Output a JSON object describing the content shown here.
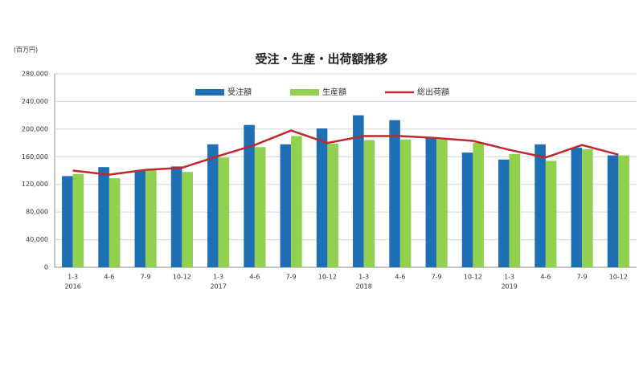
{
  "chart_data": {
    "type": "bar_line",
    "title": "受注・生産・出荷額推移",
    "unit_label": "(百万円)",
    "categories": [
      "1-3",
      "4-6",
      "7-9",
      "10-12",
      "1-3",
      "4-6",
      "7-9",
      "10-12",
      "1-3",
      "4-6",
      "7-9",
      "10-12",
      "1-3",
      "4-6",
      "7-9",
      "10-12"
    ],
    "years": [
      "2016",
      null,
      null,
      null,
      "2017",
      null,
      null,
      null,
      "2018",
      null,
      null,
      null,
      "2019",
      null,
      null,
      null
    ],
    "series": [
      {
        "name": "受注額",
        "kind": "bar",
        "color": "#1f6fb5",
        "values": [
          132000,
          145000,
          140000,
          146000,
          178000,
          206000,
          178000,
          201000,
          220000,
          213000,
          187000,
          166000,
          156000,
          178000,
          173000,
          162000
        ]
      },
      {
        "name": "生産額",
        "kind": "bar",
        "color": "#92d050",
        "values": [
          135000,
          129000,
          141000,
          138000,
          159000,
          174000,
          190000,
          179000,
          184000,
          185000,
          185000,
          180000,
          164000,
          154000,
          171000,
          162000
        ]
      },
      {
        "name": "総出荷額",
        "kind": "line",
        "color": "#c0282d",
        "values": [
          140000,
          134000,
          141000,
          144000,
          161000,
          177000,
          198000,
          180000,
          190000,
          190000,
          187000,
          183000,
          170000,
          159000,
          177000,
          163000
        ]
      }
    ],
    "ylim": [
      0,
      280000
    ],
    "yticks": [
      0,
      {
        "value": 40000,
        "label": "40,000"
      },
      {
        "value": 80000,
        "label": "80,000"
      },
      {
        "value": 120000,
        "label": "120,000"
      },
      {
        "value": 160000,
        "label": "160,000"
      },
      {
        "value": 200000,
        "label": "200,000"
      },
      {
        "value": 240000,
        "label": "240,000"
      },
      {
        "value": 280000,
        "label": "280,000"
      }
    ],
    "grid": true
  }
}
